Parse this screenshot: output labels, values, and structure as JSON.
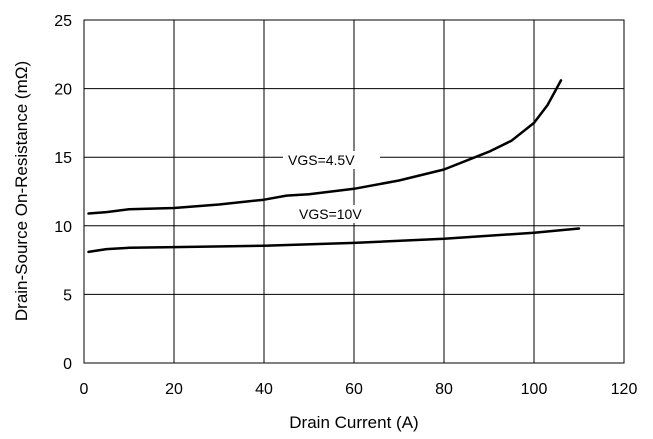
{
  "chart_data": {
    "type": "line",
    "title": "",
    "xlabel": "Drain Current (A)",
    "ylabel": "Drain-Source On-Resistance (mΩ)",
    "xlim": [
      0,
      120
    ],
    "ylim": [
      0,
      25
    ],
    "xticks": [
      0,
      20,
      40,
      60,
      80,
      100,
      120
    ],
    "yticks": [
      0,
      5,
      10,
      15,
      20,
      25
    ],
    "grid": true,
    "legend": "none",
    "series": [
      {
        "name": "VGS=4.5V",
        "color": "#000000",
        "x": [
          1,
          5,
          10,
          20,
          30,
          40,
          45,
          50,
          60,
          70,
          80,
          90,
          95,
          100,
          103,
          106
        ],
        "y": [
          10.9,
          11.0,
          11.2,
          11.3,
          11.55,
          11.9,
          12.2,
          12.3,
          12.7,
          13.3,
          14.1,
          15.4,
          16.2,
          17.5,
          18.8,
          20.6
        ]
      },
      {
        "name": "VGS=10V",
        "color": "#000000",
        "x": [
          1,
          5,
          10,
          20,
          40,
          60,
          80,
          100,
          110
        ],
        "y": [
          8.1,
          8.3,
          8.4,
          8.45,
          8.55,
          8.75,
          9.05,
          9.5,
          9.8
        ]
      }
    ]
  }
}
